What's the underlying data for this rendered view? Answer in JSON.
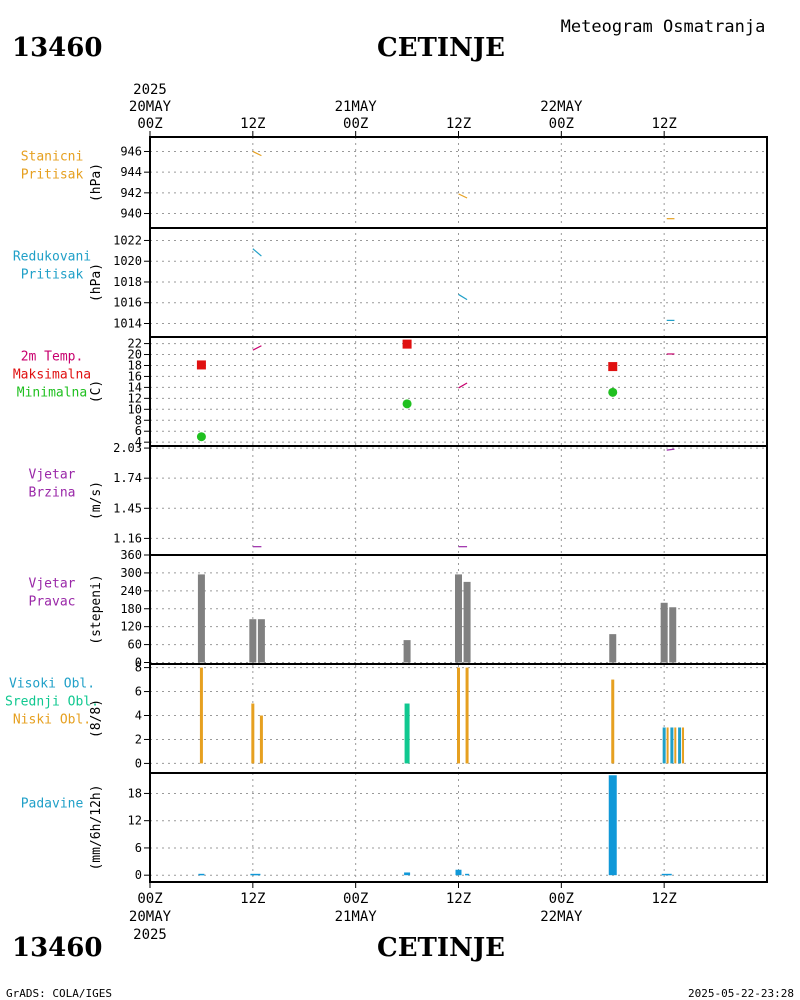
{
  "header": {
    "station_id": "13460",
    "station_name": "CETINJE",
    "chart_title": "Meteogram Osmatranja"
  },
  "footer": {
    "station_id": "13460",
    "station_name": "CETINJE",
    "credit": "GrADS: COLA/IGES",
    "timestamp": "2025-05-22-23:28"
  },
  "chart_data": {
    "type": "meteogram",
    "time_axis": {
      "unit": "hours since 2025-05-20 00Z",
      "range": [
        0,
        72
      ],
      "ticks": [
        {
          "t": 0,
          "label": "00Z",
          "date": "20MAY",
          "year": "2025"
        },
        {
          "t": 12,
          "label": "12Z",
          "date": "",
          "year": ""
        },
        {
          "t": 24,
          "label": "00Z",
          "date": "21MAY",
          "year": ""
        },
        {
          "t": 36,
          "label": "12Z",
          "date": "",
          "year": ""
        },
        {
          "t": 48,
          "label": "00Z",
          "date": "22MAY",
          "year": ""
        },
        {
          "t": 60,
          "label": "12Z",
          "date": "",
          "year": ""
        }
      ]
    },
    "panels": [
      {
        "id": "stanicni",
        "labels": [
          "Stanicni",
          "Pritisak"
        ],
        "label_colors": [
          "#e6a020",
          "#e6a020"
        ],
        "unit": "(hPa)",
        "ylim": [
          938.6,
          947.4
        ],
        "ticks": [
          940,
          942,
          944,
          946
        ],
        "tick_labels": [
          "940",
          "942",
          "944",
          "946"
        ],
        "segments": [
          {
            "color": "#e6a020",
            "points": [
              [
                12,
                946
              ],
              [
                13,
                945.6
              ]
            ]
          },
          {
            "color": "#e6a020",
            "points": [
              [
                36,
                941.9
              ],
              [
                37,
                941.5
              ]
            ]
          },
          {
            "color": "#e6a020",
            "points": [
              [
                60.3,
                939.5
              ],
              [
                61.2,
                939.5
              ]
            ]
          }
        ]
      },
      {
        "id": "redukovani",
        "labels": [
          "Redukovani",
          "Pritisak"
        ],
        "label_colors": [
          "#20a0c8",
          "#20a0c8"
        ],
        "unit": "(hPa)",
        "ylim": [
          1012.7,
          1023.2
        ],
        "ticks": [
          1014,
          1016,
          1018,
          1020,
          1022
        ],
        "tick_labels": [
          "1014",
          "1016",
          "1018",
          "1020",
          "1022"
        ],
        "segments": [
          {
            "color": "#20a0c8",
            "points": [
              [
                12,
                1021.2
              ],
              [
                13,
                1020.5
              ]
            ]
          },
          {
            "color": "#20a0c8",
            "points": [
              [
                36,
                1016.8
              ],
              [
                37,
                1016.3
              ]
            ]
          },
          {
            "color": "#20a0c8",
            "points": [
              [
                60.3,
                1014.3
              ],
              [
                61.2,
                1014.3
              ]
            ]
          }
        ]
      },
      {
        "id": "temperatura",
        "labels": [
          "2m Temp.",
          "Maksimalna",
          "Minimalna"
        ],
        "label_colors": [
          "#c8006e",
          "#e01010",
          "#20c020"
        ],
        "unit": "(C)",
        "ylim": [
          3.3,
          23.2
        ],
        "ticks": [
          4,
          6,
          8,
          10,
          12,
          14,
          16,
          18,
          20,
          22
        ],
        "tick_labels": [
          "4",
          "6",
          "8",
          "10",
          "12",
          "14",
          "16",
          "18",
          "20",
          "22"
        ],
        "segments": [
          {
            "color": "#c8006e",
            "points": [
              [
                12,
                20.8
              ],
              [
                13,
                21.6
              ]
            ]
          },
          {
            "color": "#c8006e",
            "points": [
              [
                36,
                13.9
              ],
              [
                37,
                14.8
              ]
            ]
          },
          {
            "color": "#c8006e",
            "points": [
              [
                60.3,
                20.1
              ],
              [
                61.2,
                20.1
              ]
            ]
          }
        ],
        "max_points": [
          [
            6,
            18.1
          ],
          [
            30,
            21.9
          ],
          [
            54,
            17.8
          ]
        ],
        "min_points": [
          [
            6,
            5.0
          ],
          [
            30,
            11.0
          ],
          [
            54,
            13.1
          ]
        ],
        "max_color": "#e01010",
        "min_color": "#20c020"
      },
      {
        "id": "vjetar_brzina",
        "labels": [
          "Vjetar",
          "Brzina"
        ],
        "label_colors": [
          "#9a28a8",
          "#9a28a8"
        ],
        "unit": "(m/s)",
        "ylim": [
          1.0,
          2.05
        ],
        "ticks": [
          1.16,
          1.45,
          1.74,
          2.03
        ],
        "tick_labels": [
          "1.16",
          "1.45",
          "1.74",
          "2.03"
        ],
        "segments": [
          {
            "color": "#9a28a8",
            "points": [
              [
                12,
                1.08
              ],
              [
                13,
                1.08
              ]
            ]
          },
          {
            "color": "#9a28a8",
            "points": [
              [
                36,
                1.08
              ],
              [
                37,
                1.08
              ]
            ]
          },
          {
            "color": "#9a28a8",
            "points": [
              [
                60.3,
                2.01
              ],
              [
                61.2,
                2.02
              ]
            ]
          }
        ]
      },
      {
        "id": "vjetar_pravac",
        "labels": [
          "Vjetar",
          "Pravac"
        ],
        "label_colors": [
          "#9a28a8",
          "#9a28a8"
        ],
        "unit": "(stepeni)",
        "ylim": [
          -5,
          360
        ],
        "ticks": [
          0,
          60,
          120,
          180,
          240,
          300,
          360
        ],
        "tick_labels": [
          "0",
          "60",
          "120",
          "180",
          "240",
          "300",
          "360"
        ],
        "bars": [
          {
            "t": 6,
            "value": 295,
            "color": "#808080"
          },
          {
            "t": 12,
            "value": 145,
            "color": "#808080"
          },
          {
            "t": 13,
            "value": 145,
            "color": "#808080"
          },
          {
            "t": 30,
            "value": 75,
            "color": "#808080"
          },
          {
            "t": 36,
            "value": 295,
            "color": "#808080"
          },
          {
            "t": 37,
            "value": 270,
            "color": "#808080"
          },
          {
            "t": 54,
            "value": 95,
            "color": "#808080"
          },
          {
            "t": 60,
            "value": 200,
            "color": "#808080"
          },
          {
            "t": 61,
            "value": 185,
            "color": "#808080"
          }
        ],
        "base_marks": [
          12.5,
          36.5,
          60.5
        ]
      },
      {
        "id": "oblaci",
        "labels": [
          "Visoki Obl.",
          "Srednji Obl.",
          "Niski Obl."
        ],
        "label_colors": [
          "#20a0c8",
          "#10c890",
          "#e6a020"
        ],
        "unit": "(8/8)",
        "ylim": [
          -0.8,
          8.3
        ],
        "ticks": [
          0,
          2,
          4,
          6,
          8
        ],
        "tick_labels": [
          "0",
          "2",
          "4",
          "6",
          "8"
        ],
        "bars": [
          {
            "t": 6,
            "value": 8,
            "color": "#e6a020",
            "width": 3
          },
          {
            "t": 12,
            "value": 5,
            "color": "#e6a020",
            "width": 3
          },
          {
            "t": 13,
            "value": 4,
            "color": "#e6a020",
            "width": 3
          },
          {
            "t": 30,
            "value": 5,
            "color": "#10c890",
            "width": 5
          },
          {
            "t": 36,
            "value": 8,
            "color": "#e6a020",
            "width": 3
          },
          {
            "t": 37,
            "value": 8,
            "color": "#e6a020",
            "width": 3
          },
          {
            "t": 54,
            "value": 7,
            "color": "#e6a020",
            "width": 3
          },
          {
            "t": 60,
            "value": 3,
            "color": "#20a0c8",
            "width": 3
          },
          {
            "t": 60.4,
            "value": 3,
            "color": "#e6a020",
            "width": 2
          },
          {
            "t": 60.9,
            "value": 3,
            "color": "#20a0c8",
            "width": 3
          },
          {
            "t": 61.3,
            "value": 3,
            "color": "#e6a020",
            "width": 2
          },
          {
            "t": 61.8,
            "value": 3,
            "color": "#20a0c8",
            "width": 3
          },
          {
            "t": 62.2,
            "value": 3,
            "color": "#e6a020",
            "width": 2
          }
        ]
      },
      {
        "id": "padavine",
        "labels": [
          "Padavine"
        ],
        "label_colors": [
          "#20a0c8"
        ],
        "unit": "(mm/6h/12h)",
        "ylim": [
          -1.5,
          22.5
        ],
        "ticks": [
          0,
          6,
          12,
          18
        ],
        "tick_labels": [
          "0",
          "6",
          "12",
          "18"
        ],
        "bars": [
          {
            "t": 6,
            "value": 0.3,
            "color": "#1098d8",
            "width": 6
          },
          {
            "t": 12.3,
            "value": 0.3,
            "color": "#1098d8",
            "width": 10
          },
          {
            "t": 30,
            "value": 0.6,
            "color": "#1098d8",
            "width": 6
          },
          {
            "t": 36,
            "value": 1.2,
            "color": "#1098d8",
            "width": 6
          },
          {
            "t": 37,
            "value": 0.3,
            "color": "#1098d8",
            "width": 4
          },
          {
            "t": 54,
            "value": 22.0,
            "color": "#1098d8",
            "width": 8
          },
          {
            "t": 60.3,
            "value": 0.3,
            "color": "#1098d8",
            "width": 10
          }
        ]
      }
    ]
  }
}
